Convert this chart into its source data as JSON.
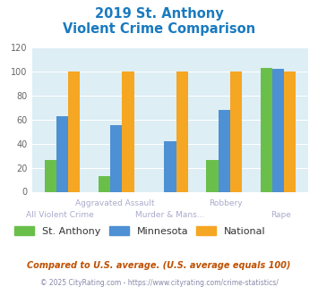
{
  "title_line1": "2019 St. Anthony",
  "title_line2": "Violent Crime Comparison",
  "st_anthony": [
    26,
    13,
    0,
    26,
    103
  ],
  "minnesota": [
    63,
    55,
    42,
    68,
    102
  ],
  "national": [
    100,
    100,
    100,
    100,
    100
  ],
  "colors": {
    "st_anthony": "#6abf4b",
    "minnesota": "#4d90d4",
    "national": "#f5a623"
  },
  "ylim": [
    0,
    120
  ],
  "yticks": [
    0,
    20,
    40,
    60,
    80,
    100,
    120
  ],
  "bg_color": "#ddeef4",
  "title_color": "#1a7abf",
  "footnote1": "Compared to U.S. average. (U.S. average equals 100)",
  "footnote2": "© 2025 CityRating.com - https://www.cityrating.com/crime-statistics/",
  "footnote1_color": "#c05000",
  "footnote2_color": "#8888aa",
  "legend_text_color": "#333333",
  "xtick_color": "#aaaacc",
  "ytick_color": "#666666"
}
